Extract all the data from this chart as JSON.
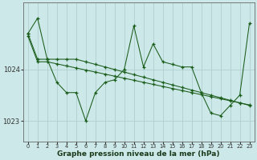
{
  "xlabel": "Graphe pression niveau de la mer (hPa)",
  "bg_color": "#cce8e8",
  "grid_color": "#aacccc",
  "line_color": "#1a5c1a",
  "ylim": [
    1022.6,
    1025.3
  ],
  "yticks": [
    1023,
    1024
  ],
  "xlim": [
    -0.5,
    23.5
  ],
  "x_ticks": [
    0,
    1,
    2,
    3,
    4,
    5,
    6,
    7,
    8,
    9,
    10,
    11,
    12,
    13,
    14,
    15,
    16,
    17,
    18,
    19,
    20,
    21,
    22,
    23
  ],
  "line_jagged": [
    1024.7,
    1025.0,
    1024.2,
    1023.75,
    1023.55,
    1023.55,
    1023.0,
    1023.55,
    1023.75,
    1023.8,
    1024.0,
    1024.85,
    1024.05,
    1024.5,
    1024.15,
    1024.1,
    1024.05,
    1024.05,
    1023.55,
    1023.15,
    1023.1,
    1023.3,
    1023.5,
    1024.9
  ],
  "line_mid": [
    1024.7,
    1024.2,
    1024.2,
    1024.2,
    1024.2,
    1024.2,
    1024.15,
    1024.1,
    1024.05,
    1024.0,
    1023.95,
    1023.9,
    1023.85,
    1023.8,
    1023.75,
    1023.7,
    1023.65,
    1023.6,
    1023.55,
    1023.5,
    1023.45,
    1023.4,
    1023.35,
    1023.3
  ],
  "line_low": [
    1024.65,
    1024.15,
    1024.15,
    1024.11,
    1024.07,
    1024.03,
    1023.99,
    1023.95,
    1023.91,
    1023.87,
    1023.83,
    1023.79,
    1023.75,
    1023.71,
    1023.67,
    1023.63,
    1023.59,
    1023.55,
    1023.51,
    1023.47,
    1023.43,
    1023.39,
    1023.35,
    1023.31
  ]
}
